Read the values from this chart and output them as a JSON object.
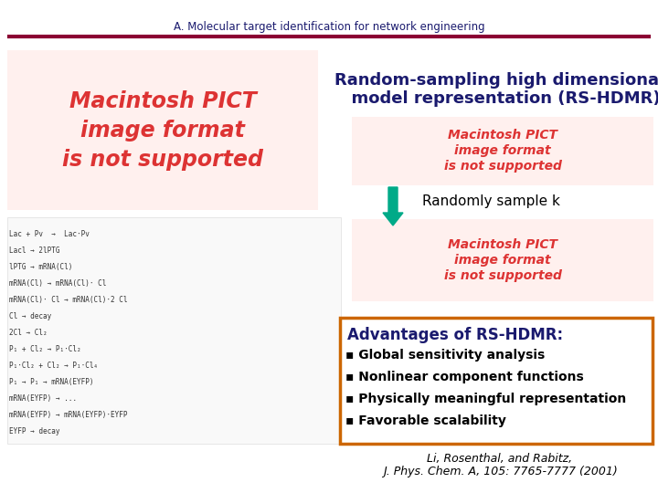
{
  "title": "A. Molecular target identification for network engineering",
  "title_color": "#1a1a6e",
  "title_line_color": "#8b0033",
  "rs_hdmr_line1": "Random-sampling high dimensional",
  "rs_hdmr_line2": "  model representation (RS-HDMR)",
  "rs_hdmr_color": "#1a1a6e",
  "randomly_sample_text": "Randomly sample k",
  "arrow_color": "#00aa88",
  "advantages_title": "Advantages of RS-HDMR:",
  "advantages_title_color": "#1a1a6e",
  "advantages_box_color": "#cc6600",
  "advantages_items": [
    "Global sensitivity analysis",
    "Nonlinear component functions",
    "Physically meaningful representation",
    "Favorable scalability"
  ],
  "citation_line1": "Li, Rosenthal, and Rabitz,",
  "citation_line2": "J. Phys. Chem. A, 105: 7765-7777 (2001)",
  "bg_color": "#ffffff",
  "placeholder_color": "#dd3333",
  "placeholder_bg": "#fff0ee",
  "placeholder_text": "Macintosh PICT\nimage format\nis not supported"
}
